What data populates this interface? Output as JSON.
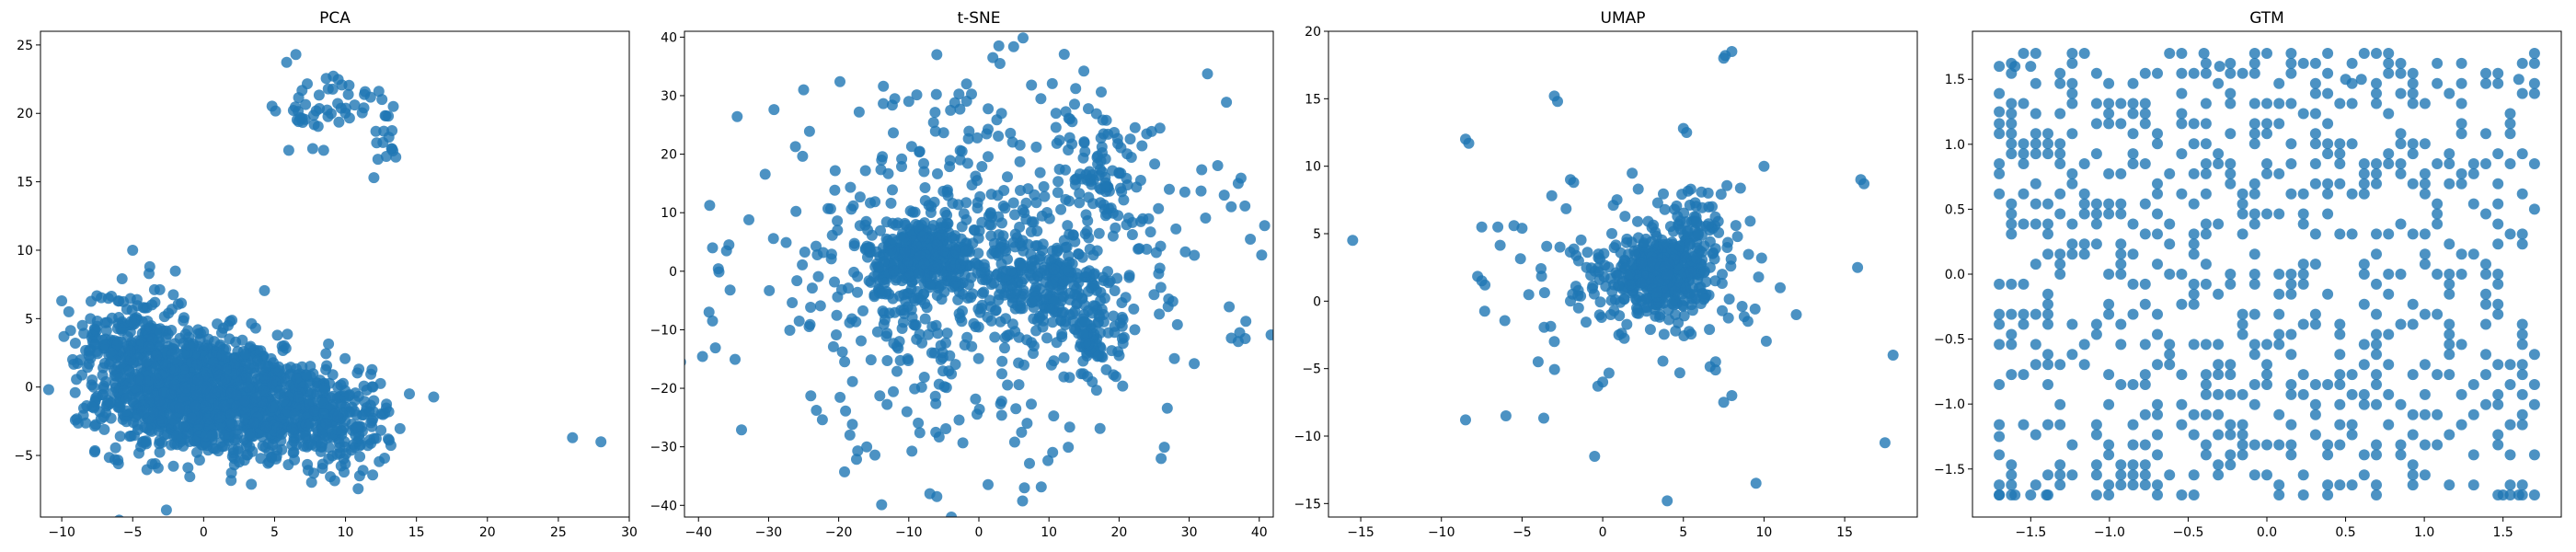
{
  "chart_data": [
    {
      "type": "scatter",
      "title": "PCA",
      "xlim": [
        -11.5,
        30
      ],
      "ylim": [
        -9.5,
        26
      ],
      "xticks": [
        -10,
        -5,
        0,
        5,
        10,
        15,
        20,
        25,
        30
      ],
      "yticks": [
        -5,
        0,
        5,
        10,
        15,
        20,
        25
      ],
      "color": "#1f77b4",
      "clusters": [
        {
          "cx": -1,
          "cy": -0.5,
          "sx": 3.2,
          "sy": 2.2,
          "n": 900
        },
        {
          "cx": 5,
          "cy": -1.5,
          "sx": 3.5,
          "sy": 1.8,
          "n": 500
        },
        {
          "cx": -5,
          "cy": 3.5,
          "sx": 2.0,
          "sy": 2.0,
          "n": 200
        },
        {
          "cx": 10,
          "cy": -3,
          "sx": 1.5,
          "sy": 1.8,
          "n": 120
        },
        {
          "cx": 7,
          "cy": 20.5,
          "sx": 1.0,
          "sy": 1.3,
          "n": 25
        },
        {
          "cx": 10,
          "cy": 21,
          "sx": 0.9,
          "sy": 1.0,
          "n": 20
        },
        {
          "cx": 12.5,
          "cy": 19,
          "sx": 0.6,
          "sy": 1.5,
          "n": 20
        }
      ],
      "points": [
        [
          -10,
          6.3
        ],
        [
          -9.5,
          5.5
        ],
        [
          14.5,
          -0.5
        ],
        [
          26,
          -3.7
        ],
        [
          28,
          -4
        ],
        [
          6.5,
          24.3
        ],
        [
          6,
          17.3
        ],
        [
          12,
          15.3
        ],
        [
          -5,
          10
        ]
      ]
    },
    {
      "type": "scatter",
      "title": "t-SNE",
      "xlim": [
        -42,
        42
      ],
      "ylim": [
        -42,
        41
      ],
      "xticks": [
        -40,
        -30,
        -20,
        -10,
        0,
        10,
        20,
        30,
        40
      ],
      "yticks": [
        -40,
        -30,
        -20,
        -10,
        0,
        10,
        20,
        30,
        40
      ],
      "color": "#1f77b4",
      "clusters": [
        {
          "cx": -8,
          "cy": 2,
          "sx": 4.0,
          "sy": 3.5,
          "n": 350
        },
        {
          "cx": 10,
          "cy": -2,
          "sx": 4.0,
          "sy": 4.0,
          "n": 200
        },
        {
          "cx": 16,
          "cy": -12,
          "sx": 2.0,
          "sy": 3.0,
          "n": 60
        },
        {
          "cx": 18,
          "cy": 16,
          "sx": 3.0,
          "sy": 4.0,
          "n": 70
        },
        {
          "cx": 0,
          "cy": 0,
          "sx": 17.0,
          "sy": 15.0,
          "n": 600
        }
      ],
      "points": [
        [
          -38,
          4
        ],
        [
          -36,
          3.5
        ],
        [
          -38.5,
          -7
        ],
        [
          -38,
          -8.5
        ],
        [
          35,
          13
        ],
        [
          37,
          15
        ],
        [
          36,
          11
        ],
        [
          38,
          -11.5
        ],
        [
          37,
          -12
        ],
        [
          -6,
          37
        ],
        [
          2,
          36.5
        ],
        [
          3,
          35.5
        ],
        [
          -7,
          -38
        ],
        [
          -6,
          -38.5
        ],
        [
          6.5,
          -37
        ],
        [
          -12,
          29.5
        ],
        [
          -10,
          29
        ],
        [
          -25,
          31
        ],
        [
          11,
          27
        ],
        [
          13,
          26
        ],
        [
          26,
          -32
        ],
        [
          -16,
          -30
        ]
      ]
    },
    {
      "type": "scatter",
      "title": "UMAP",
      "xlim": [
        -17,
        19.5
      ],
      "ylim": [
        -16,
        20
      ],
      "xticks": [
        -15,
        -10,
        -5,
        0,
        5,
        10,
        15
      ],
      "yticks": [
        -15,
        -10,
        -5,
        0,
        5,
        10,
        15,
        20
      ],
      "color": "#1f77b4",
      "clusters": [
        {
          "cx": 3.5,
          "cy": 2,
          "sx": 1.5,
          "sy": 1.3,
          "n": 400
        },
        {
          "cx": 6,
          "cy": 5.5,
          "sx": 1.2,
          "sy": 1.8,
          "n": 80
        },
        {
          "cx": 2,
          "cy": 1,
          "sx": 4.0,
          "sy": 3.5,
          "n": 90
        }
      ],
      "points": [
        [
          -15.5,
          4.5
        ],
        [
          -8.5,
          12
        ],
        [
          -8.3,
          11.7
        ],
        [
          -3,
          15.2
        ],
        [
          -2.8,
          14.8
        ],
        [
          7.5,
          18
        ],
        [
          8,
          18.5
        ],
        [
          7.6,
          18.2
        ],
        [
          5,
          12.8
        ],
        [
          5.2,
          12.5
        ],
        [
          -7.5,
          5.5
        ],
        [
          -6.5,
          5.5
        ],
        [
          -5.5,
          5.6
        ],
        [
          -5,
          5.4
        ],
        [
          -7.5,
          1.5
        ],
        [
          -7.3,
          1.2
        ],
        [
          -2,
          9
        ],
        [
          -1.8,
          8.8
        ],
        [
          10,
          10
        ],
        [
          16,
          9
        ],
        [
          16.2,
          8.7
        ],
        [
          15.8,
          2.5
        ],
        [
          11,
          1
        ],
        [
          12,
          -1
        ],
        [
          18,
          -4
        ],
        [
          17.5,
          -10.5
        ],
        [
          9.5,
          -13.5
        ],
        [
          4,
          -14.8
        ],
        [
          -0.5,
          -11.5
        ],
        [
          -6,
          -8.5
        ],
        [
          -8.5,
          -8.8
        ],
        [
          0,
          -6
        ],
        [
          -0.3,
          -6.3
        ],
        [
          -4,
          -4.5
        ],
        [
          -3,
          -3
        ],
        [
          7.5,
          -7.5
        ],
        [
          8,
          -7
        ],
        [
          7,
          -4.5
        ],
        [
          1,
          -2.5
        ],
        [
          9,
          -1.5
        ],
        [
          -2,
          0
        ],
        [
          -1.5,
          -0.5
        ],
        [
          -1,
          2.5
        ],
        [
          0.5,
          -1
        ]
      ]
    },
    {
      "type": "scatter",
      "title": "GTM",
      "xlim": [
        -1.87,
        1.87
      ],
      "ylim": [
        -1.87,
        1.87
      ],
      "xticks": [
        -1.5,
        -1.0,
        -0.5,
        0.0,
        0.5,
        1.0,
        1.5
      ],
      "yticks": [
        -1.5,
        -1.0,
        -0.5,
        0.0,
        0.5,
        1.0,
        1.5
      ],
      "color": "#1f77b4",
      "grid": {
        "n": 45,
        "min": -1.7,
        "max": 1.7,
        "density": 0.3
      },
      "points": [
        [
          -1.7,
          1.6
        ],
        [
          -1.6,
          1.6
        ],
        [
          -1.5,
          1.6
        ],
        [
          -1.7,
          -1.7
        ],
        [
          -1.6,
          -1.7
        ],
        [
          -1.5,
          -1.7
        ],
        [
          -1.4,
          -1.7
        ],
        [
          -1.7,
          1.25
        ],
        [
          -1.7,
          -1.25
        ],
        [
          1.7,
          -1.7
        ],
        [
          1.6,
          -1.7
        ],
        [
          1.5,
          -1.7
        ],
        [
          1.7,
          1.7
        ],
        [
          1.6,
          1.5
        ],
        [
          1.7,
          0.5
        ],
        [
          0,
          1.7
        ],
        [
          0.5,
          1.5
        ],
        [
          0.6,
          1.5
        ],
        [
          -0.4,
          1.7
        ],
        [
          -0.3,
          1.6
        ]
      ]
    }
  ]
}
